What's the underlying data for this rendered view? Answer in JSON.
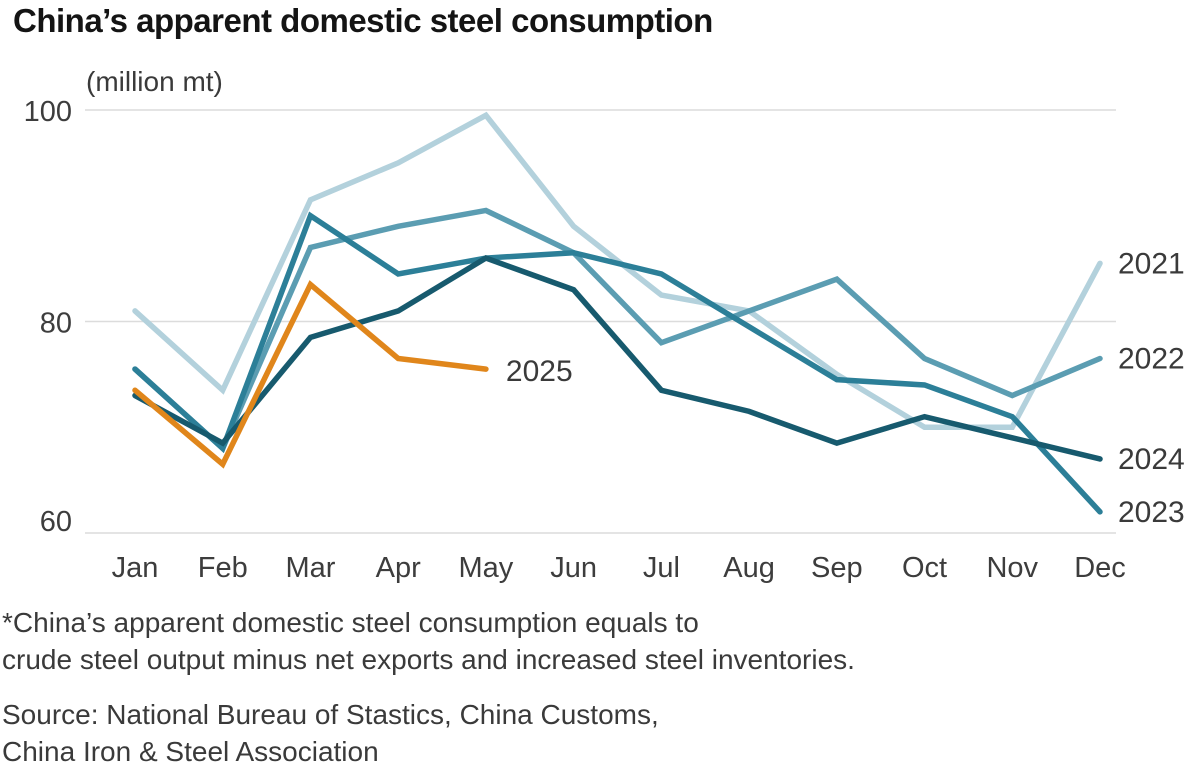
{
  "title": "China’s apparent domestic steel consumption",
  "unit_label": "(million mt)",
  "footnote": {
    "line1": "*China’s apparent domestic steel consumption equals to",
    "line2": "crude steel output minus net exports and increased steel inventories."
  },
  "source": {
    "line1": "Source: National Bureau of Stastics, China Customs,",
    "line2": "China Iron & Steel Association"
  },
  "colors": {
    "background": "#ffffff",
    "gridline": "#dcdcdc",
    "axis_text": "#3d3d3d",
    "series_label_text": "#3a3a3a",
    "title_text": "#141414"
  },
  "chart_data": {
    "type": "line",
    "title": "China’s apparent domestic steel consumption",
    "ylabel": "(million mt)",
    "unit": "million mt",
    "categories": [
      "Jan",
      "Feb",
      "Mar",
      "Apr",
      "May",
      "Jun",
      "Jul",
      "Aug",
      "Sep",
      "Oct",
      "Nov",
      "Dec"
    ],
    "yticks": [
      60,
      80,
      100
    ],
    "ylim": [
      58,
      102
    ],
    "grid": "horizontal",
    "legend_position": "end-of-line-labels",
    "series": [
      {
        "name": "2021",
        "color": "#b3d1dc",
        "values": [
          81,
          73.5,
          91.5,
          95,
          99.5,
          89,
          82.5,
          81,
          75,
          70,
          70,
          85.5
        ]
      },
      {
        "name": "2022",
        "color": "#5b9db2",
        "values": [
          75.5,
          68,
          87,
          89,
          90.5,
          86.5,
          78,
          81,
          84,
          76.5,
          73,
          76.5
        ]
      },
      {
        "name": "2023",
        "color": "#2c7f98",
        "values": [
          75.5,
          68,
          90,
          84.5,
          86,
          86.5,
          84.5,
          79.5,
          74.5,
          74,
          71,
          62
        ]
      },
      {
        "name": "2024",
        "color": "#175a6e",
        "values": [
          73,
          68.5,
          78.5,
          81,
          86,
          83,
          73.5,
          71.5,
          68.5,
          71,
          69,
          67
        ]
      },
      {
        "name": "2025",
        "color": "#e0861b",
        "values": [
          73.5,
          66.5,
          83.5,
          76.5,
          75.5
        ]
      }
    ]
  }
}
